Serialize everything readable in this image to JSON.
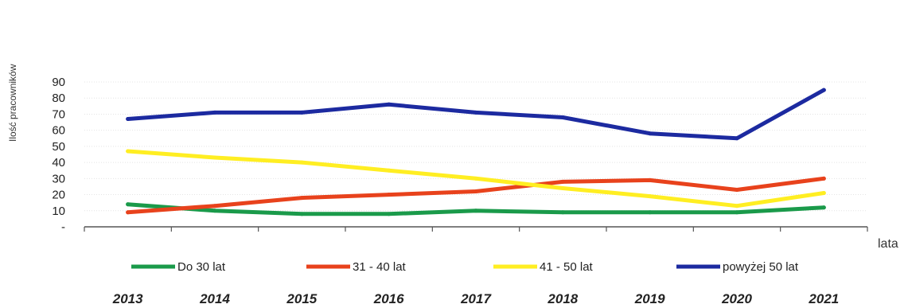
{
  "chart_data": {
    "type": "line",
    "title": "",
    "ylabel": "Ilość pracowników",
    "xlabel": "lata",
    "ylim": [
      0,
      90
    ],
    "y_ticks": [
      "-",
      "10",
      "20",
      "30",
      "40",
      "50",
      "60",
      "70",
      "80",
      "90"
    ],
    "categories": [
      "2013",
      "2014",
      "2015",
      "2016",
      "2017",
      "2018",
      "2019",
      "2020",
      "2021"
    ],
    "grid": true,
    "legend_position": "bottom",
    "series": [
      {
        "name": "Do 30 lat",
        "color": "#1a9a4a",
        "values": [
          14,
          10,
          8,
          8,
          10,
          9,
          9,
          9,
          12
        ]
      },
      {
        "name": "31 - 40 lat",
        "color": "#e8421c",
        "values": [
          9,
          13,
          18,
          20,
          22,
          28,
          29,
          23,
          30
        ]
      },
      {
        "name": "41 - 50 lat",
        "color": "#ffee22",
        "values": [
          47,
          43,
          40,
          35,
          30,
          24,
          19,
          13,
          21
        ]
      },
      {
        "name": "powyżej 50 lat",
        "color": "#1c2aa0",
        "values": [
          67,
          71,
          71,
          76,
          71,
          68,
          58,
          55,
          85
        ]
      }
    ]
  }
}
